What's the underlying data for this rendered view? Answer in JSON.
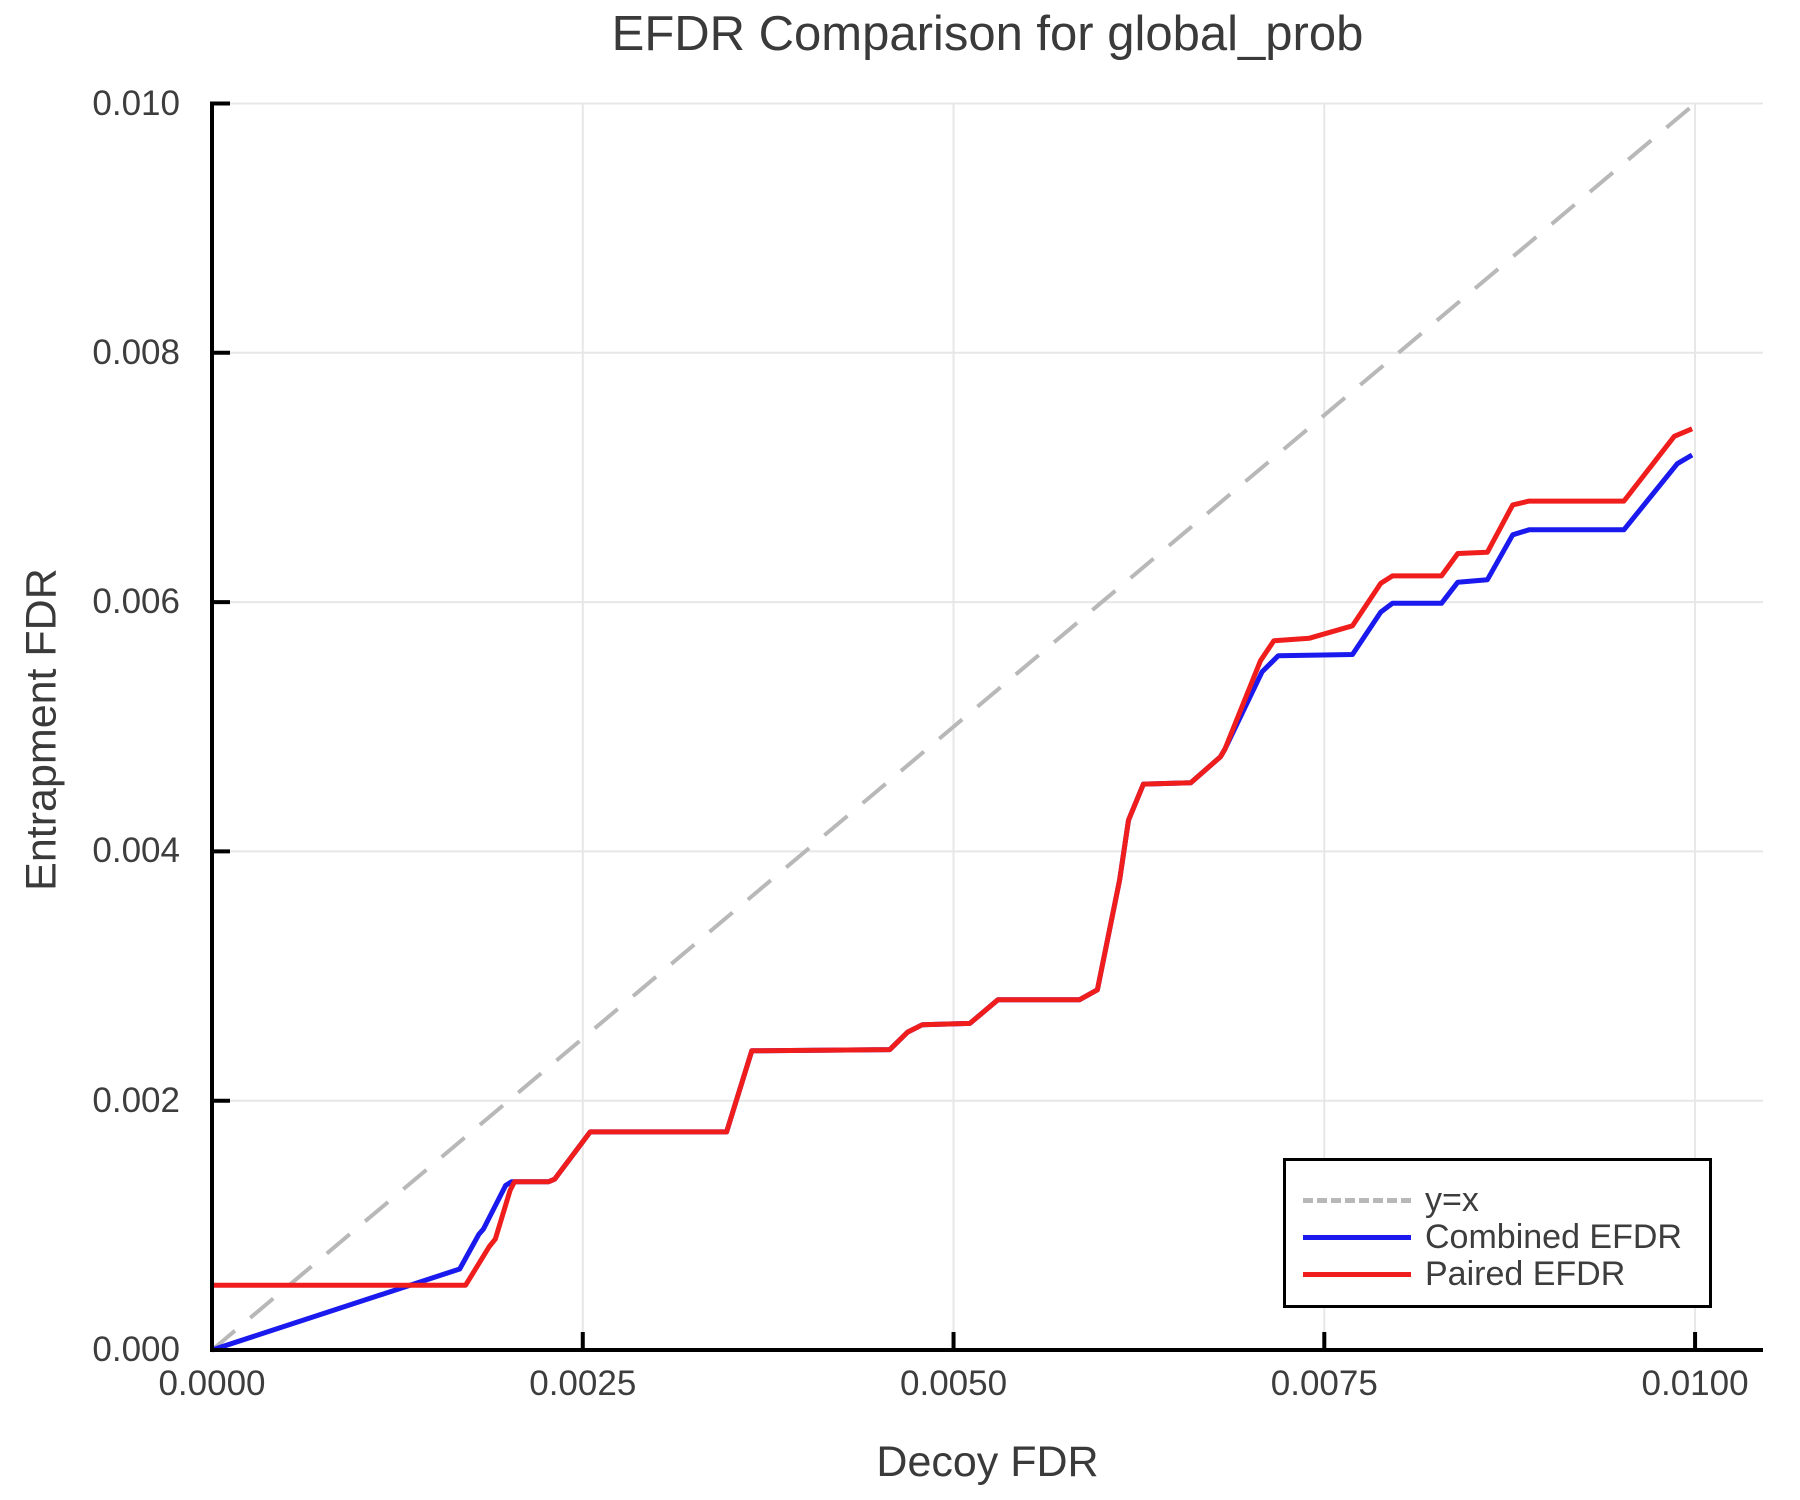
{
  "title": "EFDR Comparison for global_prob",
  "axes": {
    "x_label": "Decoy FDR",
    "y_label": "Entrapment FDR",
    "x_ticks": [
      0.0,
      0.0025,
      0.005,
      0.0075,
      0.01
    ],
    "x_tick_labels": [
      "0.0000",
      "0.0025",
      "0.0050",
      "0.0075",
      "0.0100"
    ],
    "y_ticks": [
      0.0,
      0.002,
      0.004,
      0.006,
      0.008,
      0.01
    ],
    "y_tick_labels": [
      "0.000",
      "0.002",
      "0.004",
      "0.006",
      "0.008",
      "0.010"
    ]
  },
  "legend": {
    "entries": [
      {
        "label": "y=x",
        "color": "#b8b8b8",
        "style": "dashed"
      },
      {
        "label": "Combined EFDR",
        "color": "#1a1aee",
        "style": "solid"
      },
      {
        "label": "Paired EFDR",
        "color": "#f01d1d",
        "style": "solid"
      }
    ]
  },
  "colors": {
    "grid": "#e7e7e7",
    "spine": "#000000",
    "text": "#3d3d3d",
    "background": "#ffffff"
  },
  "chart_data": {
    "type": "line",
    "title": "EFDR Comparison for global_prob",
    "xlabel": "Decoy FDR",
    "ylabel": "Entrapment FDR",
    "xlim": [
      0.0,
      0.010458
    ],
    "ylim": [
      0.0,
      0.01
    ],
    "grid": true,
    "legend_position": "bottom-right",
    "series": [
      {
        "name": "y=x",
        "color": "#b8b8b8",
        "style": "dashed",
        "width": 4,
        "points": [
          [
            0.0,
            0.0
          ],
          [
            0.01,
            0.01
          ]
        ]
      },
      {
        "name": "Combined EFDR",
        "color": "#1a1aee",
        "style": "solid",
        "width": 5,
        "points": [
          [
            0.0,
            0.0
          ],
          [
            0.00167,
            0.00065
          ],
          [
            0.0018,
            0.00093
          ],
          [
            0.00183,
            0.00097
          ],
          [
            0.00198,
            0.00132
          ],
          [
            0.00202,
            0.00135
          ],
          [
            0.00227,
            0.00135
          ],
          [
            0.00231,
            0.00137
          ],
          [
            0.00255,
            0.00175
          ],
          [
            0.00347,
            0.00175
          ],
          [
            0.00364,
            0.0024
          ],
          [
            0.00457,
            0.00241
          ],
          [
            0.00469,
            0.00255
          ],
          [
            0.00479,
            0.00261
          ],
          [
            0.00511,
            0.00262
          ],
          [
            0.0053,
            0.00281
          ],
          [
            0.00585,
            0.00281
          ],
          [
            0.00597,
            0.00289
          ],
          [
            0.00612,
            0.00377
          ],
          [
            0.00618,
            0.00425
          ],
          [
            0.00628,
            0.00454
          ],
          [
            0.0066,
            0.00455
          ],
          [
            0.0068,
            0.00476
          ],
          [
            0.00683,
            0.00482
          ],
          [
            0.00708,
            0.00544
          ],
          [
            0.00719,
            0.00557
          ],
          [
            0.00769,
            0.00558
          ],
          [
            0.00788,
            0.00592
          ],
          [
            0.00796,
            0.00599
          ],
          [
            0.00829,
            0.00599
          ],
          [
            0.0084,
            0.00616
          ],
          [
            0.0086,
            0.00618
          ],
          [
            0.00877,
            0.00654
          ],
          [
            0.00888,
            0.00658
          ],
          [
            0.00952,
            0.00658
          ],
          [
            0.00988,
            0.00711
          ],
          [
            0.00998,
            0.00718
          ]
        ]
      },
      {
        "name": "Paired EFDR",
        "color": "#f01d1d",
        "style": "solid",
        "width": 5,
        "points": [
          [
            0.0,
            0.00052
          ],
          [
            0.00171,
            0.00052
          ],
          [
            0.00187,
            0.00083
          ],
          [
            0.00191,
            0.00089
          ],
          [
            0.00201,
            0.00128
          ],
          [
            0.00204,
            0.00135
          ],
          [
            0.00227,
            0.00135
          ],
          [
            0.00231,
            0.00137
          ],
          [
            0.00255,
            0.00175
          ],
          [
            0.00347,
            0.00175
          ],
          [
            0.00364,
            0.0024
          ],
          [
            0.00457,
            0.00241
          ],
          [
            0.00469,
            0.00255
          ],
          [
            0.00479,
            0.00261
          ],
          [
            0.00511,
            0.00262
          ],
          [
            0.0053,
            0.00281
          ],
          [
            0.00585,
            0.00281
          ],
          [
            0.00597,
            0.00289
          ],
          [
            0.00612,
            0.00377
          ],
          [
            0.00618,
            0.00425
          ],
          [
            0.00628,
            0.00454
          ],
          [
            0.0066,
            0.00455
          ],
          [
            0.0068,
            0.00476
          ],
          [
            0.00683,
            0.00482
          ],
          [
            0.00707,
            0.00553
          ],
          [
            0.00716,
            0.00569
          ],
          [
            0.0074,
            0.00571
          ],
          [
            0.00769,
            0.00581
          ],
          [
            0.00788,
            0.00615
          ],
          [
            0.00796,
            0.00621
          ],
          [
            0.00829,
            0.00621
          ],
          [
            0.0084,
            0.00639
          ],
          [
            0.0086,
            0.0064
          ],
          [
            0.00877,
            0.00678
          ],
          [
            0.00888,
            0.00681
          ],
          [
            0.00952,
            0.00681
          ],
          [
            0.00986,
            0.00733
          ],
          [
            0.00998,
            0.00739
          ]
        ]
      }
    ]
  }
}
